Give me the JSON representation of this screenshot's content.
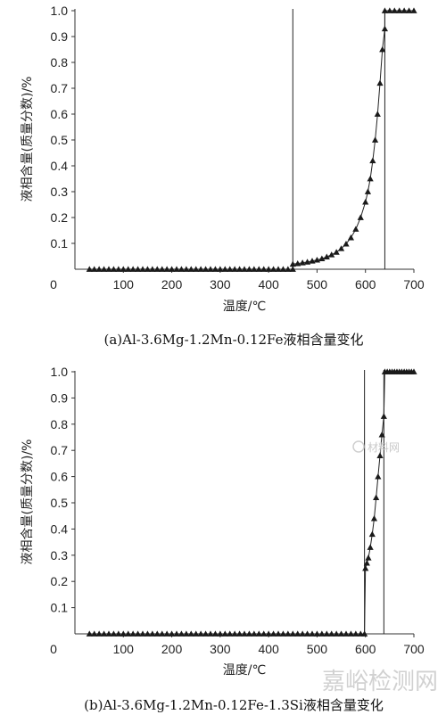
{
  "chart_data": [
    {
      "type": "line",
      "caption": "(a)Al-3.6Mg-1.2Mn-0.12Fe液相含量变化",
      "xlabel": "温度/℃",
      "ylabel": "液相含量(质量分数)/%",
      "xlim": [
        0,
        700
      ],
      "ylim": [
        0,
        1.0
      ],
      "xticks": [
        "0",
        "100",
        "200",
        "300",
        "400",
        "500",
        "600",
        "700"
      ],
      "yticks": [
        "0.1",
        "0.2",
        "0.3",
        "0.4",
        "0.5",
        "0.6",
        "0.7",
        "0.8",
        "0.9",
        "1.0"
      ],
      "vlines": [
        450,
        640
      ],
      "series": [
        {
          "marker": "triangle",
          "x": [
            30,
            40,
            50,
            60,
            70,
            80,
            90,
            100,
            110,
            120,
            130,
            140,
            150,
            160,
            170,
            180,
            190,
            200,
            210,
            220,
            230,
            240,
            250,
            260,
            270,
            280,
            290,
            300,
            310,
            320,
            330,
            340,
            350,
            360,
            370,
            380,
            390,
            400,
            410,
            420,
            430,
            440,
            450,
            450,
            460,
            470,
            480,
            490,
            500,
            510,
            520,
            530,
            540,
            550,
            560,
            570,
            580,
            590,
            600,
            605,
            610,
            615,
            620,
            625,
            630,
            635,
            640,
            640,
            650,
            660,
            670,
            680,
            690,
            700
          ],
          "y": [
            0,
            0,
            0,
            0,
            0,
            0,
            0,
            0,
            0,
            0,
            0,
            0,
            0,
            0,
            0,
            0,
            0,
            0,
            0,
            0,
            0,
            0,
            0,
            0,
            0,
            0,
            0,
            0,
            0,
            0,
            0,
            0,
            0,
            0,
            0,
            0,
            0,
            0,
            0,
            0,
            0,
            0,
            0,
            0.02,
            0.022,
            0.025,
            0.028,
            0.032,
            0.036,
            0.041,
            0.048,
            0.056,
            0.066,
            0.08,
            0.098,
            0.122,
            0.155,
            0.2,
            0.26,
            0.3,
            0.35,
            0.42,
            0.5,
            0.6,
            0.72,
            0.85,
            0.93,
            1.0,
            1.0,
            1.0,
            1.0,
            1.0,
            1.0,
            1.0
          ]
        }
      ]
    },
    {
      "type": "line",
      "caption": "(b)Al-3.6Mg-1.2Mn-0.12Fe-1.3Si液相含量变化",
      "xlabel": "温度/℃",
      "ylabel": "液相含量(质量分数)/%",
      "xlim": [
        0,
        700
      ],
      "ylim": [
        0,
        1.0
      ],
      "xticks": [
        "0",
        "100",
        "200",
        "300",
        "400",
        "500",
        "600",
        "700"
      ],
      "yticks": [
        "0.1",
        "0.2",
        "0.3",
        "0.4",
        "0.5",
        "0.6",
        "0.7",
        "0.8",
        "0.9",
        "1.0"
      ],
      "vlines": [
        598,
        638
      ],
      "series": [
        {
          "marker": "triangle",
          "x": [
            30,
            40,
            50,
            60,
            70,
            80,
            90,
            100,
            110,
            120,
            130,
            140,
            150,
            160,
            170,
            180,
            190,
            200,
            210,
            220,
            230,
            240,
            250,
            260,
            270,
            280,
            290,
            300,
            310,
            320,
            330,
            340,
            350,
            360,
            370,
            380,
            390,
            400,
            410,
            420,
            430,
            440,
            450,
            460,
            470,
            480,
            490,
            500,
            510,
            520,
            530,
            540,
            550,
            560,
            570,
            580,
            590,
            598,
            600,
            603,
            606,
            610,
            614,
            618,
            622,
            626,
            630,
            634,
            638,
            640,
            645,
            650,
            655,
            660,
            665,
            670,
            675,
            680,
            685,
            690,
            695,
            700
          ],
          "y": [
            0,
            0,
            0,
            0,
            0,
            0,
            0,
            0,
            0,
            0,
            0,
            0,
            0,
            0,
            0,
            0,
            0,
            0,
            0,
            0,
            0,
            0,
            0,
            0,
            0,
            0,
            0,
            0,
            0,
            0,
            0,
            0,
            0,
            0,
            0,
            0,
            0,
            0,
            0,
            0,
            0,
            0,
            0,
            0,
            0,
            0,
            0,
            0,
            0,
            0,
            0,
            0,
            0,
            0,
            0,
            0,
            0,
            0,
            0.25,
            0.27,
            0.29,
            0.33,
            0.38,
            0.44,
            0.52,
            0.6,
            0.68,
            0.76,
            0.83,
            1.0,
            1.0,
            1.0,
            1.0,
            1.0,
            1.0,
            1.0,
            1.0,
            1.0,
            1.0,
            1.0,
            1.0,
            1.0
          ]
        }
      ]
    }
  ],
  "watermark": {
    "logo_text": "材料网",
    "brand_text": "嘉峪检测网"
  }
}
